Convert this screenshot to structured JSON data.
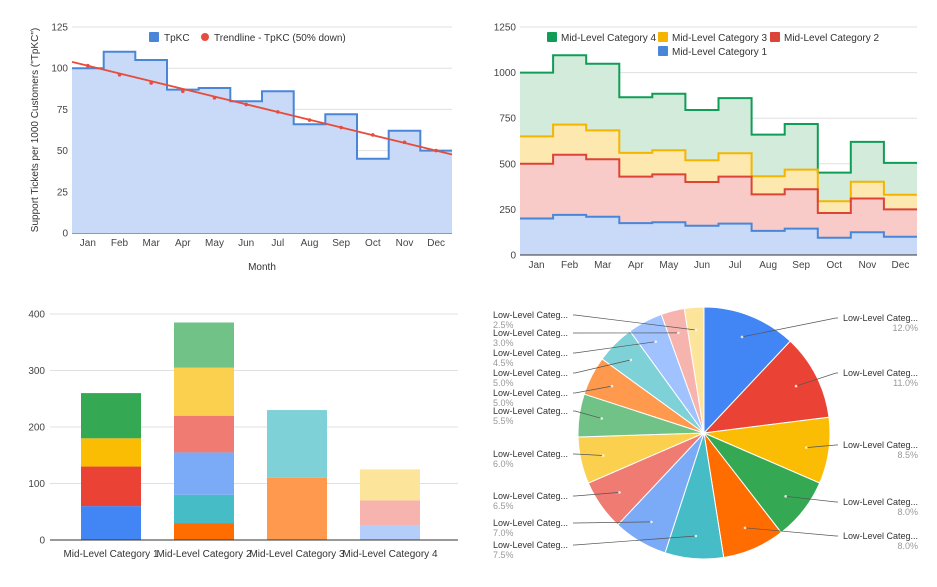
{
  "charts": [
    {
      "type": "area",
      "subtype": "stepped",
      "title": "",
      "xlabel": "Month",
      "ylabel": "Support Tickets per 1000 Customers (\"TpKC\")",
      "ylim": [
        0,
        125
      ],
      "yticks": [
        0,
        25,
        50,
        75,
        100,
        125
      ],
      "grid": true,
      "legend_position": "top",
      "categories": [
        "Jan",
        "Feb",
        "Mar",
        "Apr",
        "May",
        "Jun",
        "Jul",
        "Aug",
        "Sep",
        "Oct",
        "Nov",
        "Dec"
      ],
      "series": [
        {
          "name": "TpKC",
          "color": "#4a86d8",
          "fill": "#c9daf8",
          "values": [
            100,
            110,
            105,
            87,
            88,
            80,
            86,
            66,
            72,
            45,
            62,
            50
          ]
        },
        {
          "name": "Trendline - TpKC (50% down)",
          "color": "#e74c3c",
          "values": [
            101.5,
            96,
            91,
            86,
            82,
            78,
            73.5,
            68.5,
            64,
            59.5,
            55,
            50
          ]
        }
      ]
    },
    {
      "type": "area",
      "subtype": "stacked-stepped",
      "title": "",
      "xlabel": "",
      "ylabel": "",
      "ylim": [
        0,
        1250
      ],
      "yticks": [
        0,
        250,
        500,
        750,
        1000,
        1250
      ],
      "grid": true,
      "legend_position": "top",
      "categories": [
        "Jan",
        "Feb",
        "Mar",
        "Apr",
        "May",
        "Jun",
        "Jul",
        "Aug",
        "Sep",
        "Oct",
        "Nov",
        "Dec"
      ],
      "series": [
        {
          "name": "Mid-Level Category 1",
          "color": "#4a86d8",
          "fill": "#c9daf8",
          "values": [
            200,
            220,
            210,
            175,
            180,
            160,
            172,
            132,
            145,
            95,
            125,
            100
          ]
        },
        {
          "name": "Mid-Level Category 2",
          "color": "#db4437",
          "fill": "#f8cbc8",
          "values": [
            300,
            330,
            315,
            255,
            262,
            240,
            258,
            200,
            215,
            135,
            185,
            150
          ]
        },
        {
          "name": "Mid-Level Category 3",
          "color": "#f4b400",
          "fill": "#fde9b0",
          "values": [
            150,
            165,
            158,
            130,
            132,
            120,
            128,
            100,
            108,
            65,
            92,
            80
          ]
        },
        {
          "name": "Mid-Level Category 4",
          "color": "#0f9d58",
          "fill": "#d3ebdb",
          "values": [
            350,
            380,
            365,
            305,
            310,
            275,
            302,
            228,
            250,
            157,
            218,
            175
          ]
        }
      ],
      "legend_order": [
        "Mid-Level Category 4",
        "Mid-Level Category 3",
        "Mid-Level Category 2",
        "Mid-Level Category 1"
      ]
    },
    {
      "type": "bar",
      "subtype": "stacked",
      "title": "",
      "ylim": [
        0,
        400
      ],
      "yticks": [
        0,
        100,
        200,
        300,
        400
      ],
      "grid": true,
      "categories": [
        "Mid-Level Category 1",
        "Mid-Level Category 2",
        "Mid-Level Category 3",
        "Mid-Level Category 4"
      ],
      "stacks": [
        [
          {
            "value": 60,
            "color": "#4285f4"
          },
          {
            "value": 70,
            "color": "#ea4335"
          },
          {
            "value": 50,
            "color": "#fbbc04"
          },
          {
            "value": 80,
            "color": "#34a853"
          }
        ],
        [
          {
            "value": 30,
            "color": "#ff6d01"
          },
          {
            "value": 50,
            "color": "#46bdc6"
          },
          {
            "value": 75,
            "color": "#7baaf7"
          },
          {
            "value": 65,
            "color": "#f07b72"
          },
          {
            "value": 85,
            "color": "#fcd04f"
          },
          {
            "value": 80,
            "color": "#71c287"
          }
        ],
        [
          {
            "value": 110,
            "color": "#ff994d"
          },
          {
            "value": 120,
            "color": "#7ed1d7"
          }
        ],
        [
          {
            "value": 25,
            "color": "#b3cefb"
          },
          {
            "value": 45,
            "color": "#f7b4ae"
          },
          {
            "value": 55,
            "color": "#fde49b"
          }
        ]
      ]
    },
    {
      "type": "pie",
      "title": "",
      "slices": [
        {
          "label": "Low-Level Categ...",
          "pct": "12.0%",
          "value": 12.0,
          "color": "#4285f4"
        },
        {
          "label": "Low-Level Categ...",
          "pct": "11.0%",
          "value": 11.0,
          "color": "#ea4335"
        },
        {
          "label": "Low-Level Categ...",
          "pct": "8.5%",
          "value": 8.5,
          "color": "#fbbc04"
        },
        {
          "label": "Low-Level Categ...",
          "pct": "8.0%",
          "value": 8.0,
          "color": "#34a853"
        },
        {
          "label": "Low-Level Categ...",
          "pct": "8.0%",
          "value": 8.0,
          "color": "#ff6d01"
        },
        {
          "label": "Low-Level Categ...",
          "pct": "7.5%",
          "value": 7.5,
          "color": "#46bdc6"
        },
        {
          "label": "Low-Level Categ...",
          "pct": "7.0%",
          "value": 7.0,
          "color": "#7baaf7"
        },
        {
          "label": "Low-Level Categ...",
          "pct": "6.5%",
          "value": 6.5,
          "color": "#f07b72"
        },
        {
          "label": "Low-Level Categ...",
          "pct": "6.0%",
          "value": 6.0,
          "color": "#fcd04f"
        },
        {
          "label": "Low-Level Categ...",
          "pct": "5.5%",
          "value": 5.5,
          "color": "#71c287"
        },
        {
          "label": "Low-Level Categ...",
          "pct": "5.0%",
          "value": 5.0,
          "color": "#ff994d"
        },
        {
          "label": "Low-Level Categ...",
          "pct": "5.0%",
          "value": 5.0,
          "color": "#7ed1d7"
        },
        {
          "label": "Low-Level Categ...",
          "pct": "4.5%",
          "value": 4.5,
          "color": "#a0c3ff"
        },
        {
          "label": "Low-Level Categ...",
          "pct": "3.0%",
          "value": 3.0,
          "color": "#f7b4ae"
        },
        {
          "label": "Low-Level Categ...",
          "pct": "2.5%",
          "value": 2.5,
          "color": "#fde49b"
        }
      ]
    }
  ]
}
